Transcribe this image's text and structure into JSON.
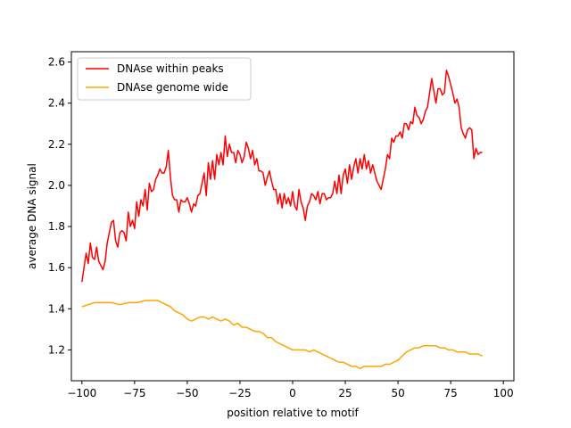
{
  "chart_data": {
    "type": "line",
    "title": "",
    "xlabel": "position relative to motif",
    "ylabel": "average DNA signal",
    "xlim": [
      -105,
      105
    ],
    "ylim": [
      1.05,
      2.65
    ],
    "xticks": [
      -100,
      -75,
      -50,
      -25,
      0,
      25,
      50,
      75,
      100
    ],
    "yticks": [
      1.2,
      1.4,
      1.6,
      1.8,
      2.0,
      2.2,
      2.4,
      2.6
    ],
    "grid": false,
    "legend": {
      "position": "top-left"
    },
    "series": [
      {
        "name": "DNAse within peaks",
        "color": "#ff0000",
        "points": [
          [
            -100,
            1.53
          ],
          [
            -98,
            1.67
          ],
          [
            -97,
            1.62
          ],
          [
            -96,
            1.72
          ],
          [
            -95,
            1.65
          ],
          [
            -94,
            1.64
          ],
          [
            -93,
            1.7
          ],
          [
            -92,
            1.63
          ],
          [
            -90,
            1.59
          ],
          [
            -89,
            1.63
          ],
          [
            -88,
            1.72
          ],
          [
            -86,
            1.82
          ],
          [
            -85,
            1.83
          ],
          [
            -84,
            1.73
          ],
          [
            -83,
            1.7
          ],
          [
            -82,
            1.77
          ],
          [
            -81,
            1.78
          ],
          [
            -80,
            1.77
          ],
          [
            -79,
            1.73
          ],
          [
            -78,
            1.87
          ],
          [
            -77,
            1.8
          ],
          [
            -76,
            1.83
          ],
          [
            -75,
            1.79
          ],
          [
            -74,
            1.92
          ],
          [
            -73,
            1.85
          ],
          [
            -72,
            1.93
          ],
          [
            -71,
            1.9
          ],
          [
            -70,
            1.98
          ],
          [
            -69,
            1.88
          ],
          [
            -68,
            2.01
          ],
          [
            -67,
            1.97
          ],
          [
            -66,
            1.98
          ],
          [
            -65,
            2.03
          ],
          [
            -64,
            2.05
          ],
          [
            -63,
            2.08
          ],
          [
            -62,
            2.06
          ],
          [
            -61,
            2.06
          ],
          [
            -60,
            2.09
          ],
          [
            -59,
            2.17
          ],
          [
            -58,
            2.04
          ],
          [
            -57,
            1.95
          ],
          [
            -56,
            1.93
          ],
          [
            -55,
            1.93
          ],
          [
            -54,
            1.87
          ],
          [
            -53,
            1.93
          ],
          [
            -52,
            1.92
          ],
          [
            -51,
            1.92
          ],
          [
            -50,
            1.94
          ],
          [
            -49,
            1.91
          ],
          [
            -48,
            1.87
          ],
          [
            -47,
            1.91
          ],
          [
            -46,
            1.9
          ],
          [
            -45,
            1.95
          ],
          [
            -44,
            1.96
          ],
          [
            -43,
            2.01
          ],
          [
            -42,
            2.06
          ],
          [
            -41,
            1.95
          ],
          [
            -40,
            2.11
          ],
          [
            -39,
            2.03
          ],
          [
            -38,
            2.12
          ],
          [
            -37,
            2.03
          ],
          [
            -36,
            2.15
          ],
          [
            -35,
            2.1
          ],
          [
            -34,
            2.16
          ],
          [
            -33,
            2.1
          ],
          [
            -32,
            2.24
          ],
          [
            -31,
            2.14
          ],
          [
            -30,
            2.2
          ],
          [
            -29,
            2.16
          ],
          [
            -28,
            2.16
          ],
          [
            -27,
            2.11
          ],
          [
            -26,
            2.17
          ],
          [
            -25,
            2.15
          ],
          [
            -24,
            2.11
          ],
          [
            -23,
            2.14
          ],
          [
            -22,
            2.21
          ],
          [
            -21,
            2.18
          ],
          [
            -20,
            2.13
          ],
          [
            -19,
            2.17
          ],
          [
            -18,
            2.1
          ],
          [
            -17,
            2.13
          ],
          [
            -16,
            2.07
          ],
          [
            -15,
            2.07
          ],
          [
            -14,
            2.06
          ],
          [
            -13,
            2.0
          ],
          [
            -12,
            2.04
          ],
          [
            -11,
            2.07
          ],
          [
            -10,
            2.02
          ],
          [
            -9,
            1.98
          ],
          [
            -8,
            1.98
          ],
          [
            -7,
            1.91
          ],
          [
            -6,
            1.96
          ],
          [
            -5,
            1.89
          ],
          [
            -4,
            1.96
          ],
          [
            -3,
            1.91
          ],
          [
            -2,
            1.94
          ],
          [
            -1,
            1.9
          ],
          [
            0,
            1.97
          ],
          [
            1,
            1.9
          ],
          [
            2,
            1.88
          ],
          [
            3,
            1.98
          ],
          [
            4,
            1.92
          ],
          [
            5,
            1.89
          ],
          [
            6,
            1.83
          ],
          [
            7,
            1.9
          ],
          [
            8,
            1.92
          ],
          [
            9,
            1.96
          ],
          [
            10,
            1.95
          ],
          [
            11,
            1.93
          ],
          [
            12,
            1.97
          ],
          [
            13,
            1.91
          ],
          [
            14,
            1.96
          ],
          [
            15,
            1.96
          ],
          [
            16,
            1.93
          ],
          [
            17,
            1.94
          ],
          [
            18,
            1.94
          ],
          [
            19,
            1.96
          ],
          [
            20,
            2.02
          ],
          [
            21,
            1.96
          ],
          [
            22,
            2.05
          ],
          [
            23,
            1.96
          ],
          [
            24,
            2.05
          ],
          [
            25,
            2.08
          ],
          [
            26,
            2.01
          ],
          [
            27,
            2.1
          ],
          [
            28,
            2.03
          ],
          [
            29,
            2.09
          ],
          [
            30,
            2.13
          ],
          [
            31,
            2.06
          ],
          [
            32,
            2.13
          ],
          [
            33,
            2.08
          ],
          [
            34,
            2.15
          ],
          [
            35,
            2.08
          ],
          [
            36,
            2.12
          ],
          [
            37,
            2.06
          ],
          [
            38,
            2.1
          ],
          [
            39,
            2.06
          ],
          [
            40,
            2.02
          ],
          [
            41,
            2.0
          ],
          [
            42,
            1.98
          ],
          [
            43,
            2.03
          ],
          [
            44,
            2.08
          ],
          [
            45,
            2.15
          ],
          [
            46,
            2.13
          ],
          [
            47,
            2.23
          ],
          [
            48,
            2.21
          ],
          [
            49,
            2.24
          ],
          [
            50,
            2.24
          ],
          [
            51,
            2.26
          ],
          [
            52,
            2.23
          ],
          [
            53,
            2.3
          ],
          [
            54,
            2.3
          ],
          [
            55,
            2.27
          ],
          [
            56,
            2.31
          ],
          [
            57,
            2.3
          ],
          [
            58,
            2.38
          ],
          [
            59,
            2.34
          ],
          [
            60,
            2.33
          ],
          [
            61,
            2.3
          ],
          [
            62,
            2.32
          ],
          [
            63,
            2.36
          ],
          [
            64,
            2.38
          ],
          [
            65,
            2.45
          ],
          [
            66,
            2.52
          ],
          [
            67,
            2.46
          ],
          [
            68,
            2.4
          ],
          [
            69,
            2.47
          ],
          [
            70,
            2.47
          ],
          [
            71,
            2.44
          ],
          [
            72,
            2.45
          ],
          [
            73,
            2.56
          ],
          [
            74,
            2.53
          ],
          [
            75,
            2.49
          ],
          [
            76,
            2.45
          ],
          [
            77,
            2.4
          ],
          [
            78,
            2.42
          ],
          [
            79,
            2.38
          ],
          [
            80,
            2.28
          ],
          [
            81,
            2.25
          ],
          [
            82,
            2.23
          ],
          [
            83,
            2.27
          ],
          [
            84,
            2.28
          ],
          [
            85,
            2.27
          ],
          [
            86,
            2.13
          ],
          [
            87,
            2.18
          ],
          [
            88,
            2.15
          ],
          [
            89,
            2.16
          ],
          [
            90,
            2.16
          ]
        ]
      },
      {
        "name": "DNAse genome wide",
        "color": "#ffa500",
        "points": [
          [
            -100,
            1.41
          ],
          [
            -97,
            1.42
          ],
          [
            -94,
            1.43
          ],
          [
            -90,
            1.43
          ],
          [
            -86,
            1.43
          ],
          [
            -82,
            1.42
          ],
          [
            -78,
            1.43
          ],
          [
            -74,
            1.43
          ],
          [
            -70,
            1.44
          ],
          [
            -66,
            1.44
          ],
          [
            -64,
            1.44
          ],
          [
            -62,
            1.43
          ],
          [
            -60,
            1.42
          ],
          [
            -58,
            1.41
          ],
          [
            -56,
            1.39
          ],
          [
            -54,
            1.38
          ],
          [
            -52,
            1.37
          ],
          [
            -50,
            1.35
          ],
          [
            -48,
            1.34
          ],
          [
            -46,
            1.35
          ],
          [
            -44,
            1.36
          ],
          [
            -42,
            1.36
          ],
          [
            -40,
            1.35
          ],
          [
            -38,
            1.36
          ],
          [
            -36,
            1.35
          ],
          [
            -34,
            1.34
          ],
          [
            -32,
            1.35
          ],
          [
            -30,
            1.34
          ],
          [
            -28,
            1.32
          ],
          [
            -26,
            1.33
          ],
          [
            -24,
            1.31
          ],
          [
            -22,
            1.31
          ],
          [
            -20,
            1.3
          ],
          [
            -18,
            1.29
          ],
          [
            -16,
            1.29
          ],
          [
            -14,
            1.28
          ],
          [
            -12,
            1.26
          ],
          [
            -10,
            1.26
          ],
          [
            -8,
            1.24
          ],
          [
            -6,
            1.23
          ],
          [
            -4,
            1.22
          ],
          [
            -2,
            1.21
          ],
          [
            0,
            1.2
          ],
          [
            2,
            1.2
          ],
          [
            4,
            1.2
          ],
          [
            6,
            1.2
          ],
          [
            8,
            1.19
          ],
          [
            10,
            1.2
          ],
          [
            12,
            1.19
          ],
          [
            14,
            1.18
          ],
          [
            16,
            1.17
          ],
          [
            18,
            1.16
          ],
          [
            20,
            1.15
          ],
          [
            22,
            1.14
          ],
          [
            24,
            1.14
          ],
          [
            26,
            1.13
          ],
          [
            28,
            1.12
          ],
          [
            30,
            1.12
          ],
          [
            32,
            1.11
          ],
          [
            34,
            1.12
          ],
          [
            36,
            1.12
          ],
          [
            38,
            1.12
          ],
          [
            40,
            1.12
          ],
          [
            42,
            1.12
          ],
          [
            44,
            1.13
          ],
          [
            46,
            1.13
          ],
          [
            48,
            1.14
          ],
          [
            50,
            1.15
          ],
          [
            52,
            1.17
          ],
          [
            54,
            1.19
          ],
          [
            56,
            1.2
          ],
          [
            58,
            1.21
          ],
          [
            60,
            1.21
          ],
          [
            62,
            1.22
          ],
          [
            64,
            1.22
          ],
          [
            66,
            1.22
          ],
          [
            68,
            1.22
          ],
          [
            70,
            1.21
          ],
          [
            72,
            1.21
          ],
          [
            74,
            1.2
          ],
          [
            76,
            1.2
          ],
          [
            78,
            1.19
          ],
          [
            80,
            1.19
          ],
          [
            82,
            1.19
          ],
          [
            84,
            1.18
          ],
          [
            86,
            1.18
          ],
          [
            88,
            1.18
          ],
          [
            90,
            1.17
          ]
        ]
      }
    ]
  }
}
